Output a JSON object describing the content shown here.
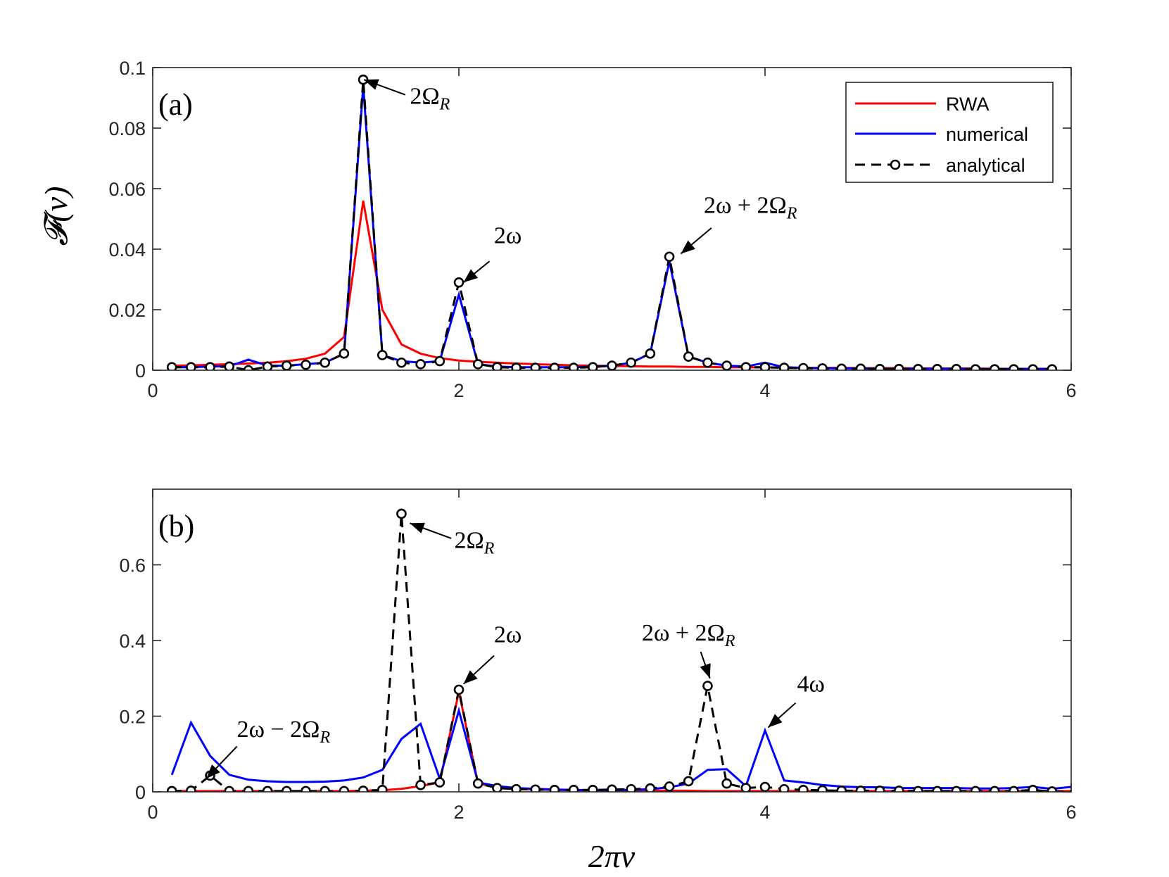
{
  "figure": {
    "shared_xlabel": "2πν",
    "ylabel": "𝓕(ν)",
    "legend": [
      {
        "name": "RWA",
        "color": "#ff0000",
        "style": "solid"
      },
      {
        "name": "numerical",
        "color": "#0000ff",
        "style": "solid"
      },
      {
        "name": "analytical",
        "color": "#000000",
        "style": "dashed-circle"
      }
    ]
  },
  "chart_data": [
    {
      "type": "line",
      "panel_label": "(a)",
      "xlim": [
        0,
        6
      ],
      "ylim": [
        0,
        0.1
      ],
      "xticks": [
        0,
        2,
        4,
        6
      ],
      "xtick_labels": [
        "0",
        "2",
        "4",
        "6"
      ],
      "yticks": [
        0,
        0.02,
        0.04,
        0.06,
        0.08,
        0.1
      ],
      "ytick_labels": [
        "0",
        "0.02",
        "0.04",
        "0.06",
        "0.08",
        "0.1"
      ],
      "x": [
        0.125,
        0.25,
        0.375,
        0.5,
        0.625,
        0.75,
        0.875,
        1.0,
        1.125,
        1.25,
        1.375,
        1.5,
        1.625,
        1.75,
        1.875,
        2.0,
        2.125,
        2.25,
        2.375,
        2.5,
        2.625,
        2.75,
        2.875,
        3.0,
        3.125,
        3.25,
        3.375,
        3.5,
        3.625,
        3.75,
        3.875,
        4.0,
        4.125,
        4.25,
        4.375,
        4.5,
        4.625,
        4.75,
        4.875,
        5.0,
        5.125,
        5.25,
        5.375,
        5.5,
        5.625,
        5.75,
        5.875
      ],
      "series": [
        {
          "name": "RWA",
          "values": [
            0.0015,
            0.0016,
            0.0018,
            0.002,
            0.0022,
            0.0025,
            0.003,
            0.0038,
            0.0055,
            0.011,
            0.056,
            0.02,
            0.0085,
            0.0055,
            0.004,
            0.0032,
            0.0028,
            0.0025,
            0.0022,
            0.002,
            0.0018,
            0.0016,
            0.0015,
            0.0014,
            0.0013,
            0.0012,
            0.0012,
            0.0011,
            0.0011,
            0.001,
            0.001,
            0.0009,
            0.0009,
            0.0008,
            0.0008,
            0.0008,
            0.0007,
            0.0007,
            0.0007,
            0.0006,
            0.0006,
            0.0006,
            0.0006,
            0.0005,
            0.0005,
            0.0005,
            0.0005
          ]
        },
        {
          "name": "numerical",
          "values": [
            0.001,
            0.001,
            0.0012,
            0.0013,
            0.0035,
            0.0015,
            0.0015,
            0.002,
            0.0025,
            0.0055,
            0.094,
            0.005,
            0.003,
            0.0025,
            0.003,
            0.025,
            0.002,
            0.0012,
            0.001,
            0.001,
            0.001,
            0.001,
            0.0012,
            0.0015,
            0.0025,
            0.0055,
            0.036,
            0.0045,
            0.0025,
            0.0015,
            0.0012,
            0.0025,
            0.001,
            0.0008,
            0.0007,
            0.0006,
            0.0006,
            0.0005,
            0.0005,
            0.0005,
            0.0005,
            0.0005,
            0.0004,
            0.0004,
            0.0004,
            0.0004,
            0.0004
          ]
        },
        {
          "name": "analytical",
          "values": [
            0.001,
            0.001,
            0.001,
            0.0012,
            0.0,
            0.0012,
            0.0015,
            0.0018,
            0.0025,
            0.0055,
            0.096,
            0.005,
            0.0025,
            0.002,
            0.003,
            0.029,
            0.002,
            0.001,
            0.0008,
            0.0008,
            0.0008,
            0.0008,
            0.001,
            0.0015,
            0.0025,
            0.0055,
            0.0375,
            0.0045,
            0.0025,
            0.0015,
            0.001,
            0.001,
            0.0008,
            0.0007,
            0.0006,
            0.0005,
            0.0005,
            0.0004,
            0.0004,
            0.0004,
            0.0004,
            0.0004,
            0.0003,
            0.0003,
            0.0003,
            0.0003,
            0.0003
          ]
        }
      ],
      "annotations": [
        {
          "text": "2Ω",
          "sub": "R",
          "tip": [
            1.38,
            0.096
          ],
          "tail": [
            1.65,
            0.091
          ],
          "anchor": "start",
          "label_at": [
            1.68,
            0.088
          ]
        },
        {
          "text": "2ω",
          "tip": [
            2.03,
            0.029
          ],
          "tail": [
            2.2,
            0.036
          ],
          "anchor": "middle",
          "label_at": [
            2.32,
            0.042
          ]
        },
        {
          "text": "2ω + 2Ω",
          "sub": "R",
          "tip": [
            3.45,
            0.0385
          ],
          "tail": [
            3.65,
            0.047
          ],
          "anchor": "start",
          "label_at": [
            3.6,
            0.052
          ]
        }
      ]
    },
    {
      "type": "line",
      "panel_label": "(b)",
      "xlim": [
        0,
        6
      ],
      "ylim": [
        0,
        0.8
      ],
      "xticks": [
        0,
        2,
        4,
        6
      ],
      "xtick_labels": [
        "0",
        "2",
        "4",
        "6"
      ],
      "yticks": [
        0,
        0.2,
        0.4,
        0.6
      ],
      "ytick_labels": [
        "0",
        "0.2",
        "0.4",
        "0.6"
      ],
      "x": [
        0.125,
        0.25,
        0.375,
        0.5,
        0.625,
        0.75,
        0.875,
        1.0,
        1.125,
        1.25,
        1.375,
        1.5,
        1.625,
        1.75,
        1.875,
        2.0,
        2.125,
        2.25,
        2.375,
        2.5,
        2.625,
        2.75,
        2.875,
        3.0,
        3.125,
        3.25,
        3.375,
        3.5,
        3.625,
        3.75,
        3.875,
        4.0,
        4.125,
        4.25,
        4.375,
        4.5,
        4.625,
        4.75,
        4.875,
        5.0,
        5.125,
        5.25,
        5.375,
        5.5,
        5.625,
        5.75,
        5.875,
        6.0
      ],
      "series": [
        {
          "name": "RWA",
          "values": [
            0.002,
            0.002,
            0.002,
            0.002,
            0.002,
            0.002,
            0.002,
            0.002,
            0.002,
            0.002,
            0.003,
            0.004,
            0.008,
            0.015,
            0.025,
            0.265,
            0.022,
            0.012,
            0.008,
            0.006,
            0.005,
            0.004,
            0.004,
            0.003,
            0.003,
            0.003,
            0.003,
            0.003,
            0.002,
            0.002,
            0.002,
            0.002,
            0.002,
            0.002,
            0.002,
            0.002,
            0.002,
            0.002,
            0.002,
            0.002,
            0.002,
            0.002,
            0.002,
            0.002,
            0.002,
            0.002,
            0.002,
            0.002
          ]
        },
        {
          "name": "numerical",
          "values": [
            0.045,
            0.183,
            0.095,
            0.045,
            0.032,
            0.028,
            0.026,
            0.026,
            0.027,
            0.03,
            0.038,
            0.058,
            0.14,
            0.18,
            0.035,
            0.215,
            0.025,
            0.015,
            0.01,
            0.008,
            0.006,
            0.005,
            0.004,
            0.004,
            0.005,
            0.007,
            0.012,
            0.022,
            0.058,
            0.06,
            0.015,
            0.162,
            0.03,
            0.025,
            0.018,
            0.014,
            0.012,
            0.012,
            0.01,
            0.01,
            0.01,
            0.01,
            0.009,
            0.009,
            0.01,
            0.013,
            0.008,
            0.013
          ]
        },
        {
          "name": "analytical",
          "values": [
            0.002,
            0.003,
            0.043,
            0.002,
            0.002,
            0.002,
            0.002,
            0.002,
            0.002,
            0.002,
            0.003,
            0.005,
            0.735,
            0.018,
            0.025,
            0.27,
            0.022,
            0.01,
            0.007,
            0.006,
            0.005,
            0.005,
            0.005,
            0.006,
            0.007,
            0.009,
            0.014,
            0.028,
            0.28,
            0.022,
            0.01,
            0.013,
            0.007,
            0.005,
            0.004,
            0.003,
            0.003,
            0.003,
            0.003,
            0.002,
            0.002,
            0.002,
            0.002,
            0.002,
            0.002,
            0.005,
            0.001,
            0.001
          ]
        }
      ],
      "annotations": [
        {
          "text": "2Ω",
          "sub": "R",
          "tip": [
            1.68,
            0.71
          ],
          "tail": [
            1.95,
            0.67
          ],
          "anchor": "start",
          "label_at": [
            1.97,
            0.645
          ]
        },
        {
          "text": "2ω",
          "tip": [
            2.03,
            0.285
          ],
          "tail": [
            2.23,
            0.36
          ],
          "anchor": "middle",
          "label_at": [
            2.32,
            0.395
          ]
        },
        {
          "text": "2ω + 2Ω",
          "sub": "R",
          "tip": [
            3.64,
            0.3
          ],
          "tail": [
            3.58,
            0.37
          ],
          "anchor": "middle",
          "label_at": [
            3.5,
            0.4
          ]
        },
        {
          "text": "4ω",
          "tip": [
            4.02,
            0.17
          ],
          "tail": [
            4.2,
            0.235
          ],
          "anchor": "middle",
          "label_at": [
            4.3,
            0.265
          ]
        },
        {
          "text": "2ω − 2Ω",
          "sub": "R",
          "tip": [
            0.35,
            0.035
          ],
          "tail": [
            0.55,
            0.12
          ],
          "anchor": "start",
          "label_at": [
            0.55,
            0.145
          ]
        }
      ]
    }
  ]
}
